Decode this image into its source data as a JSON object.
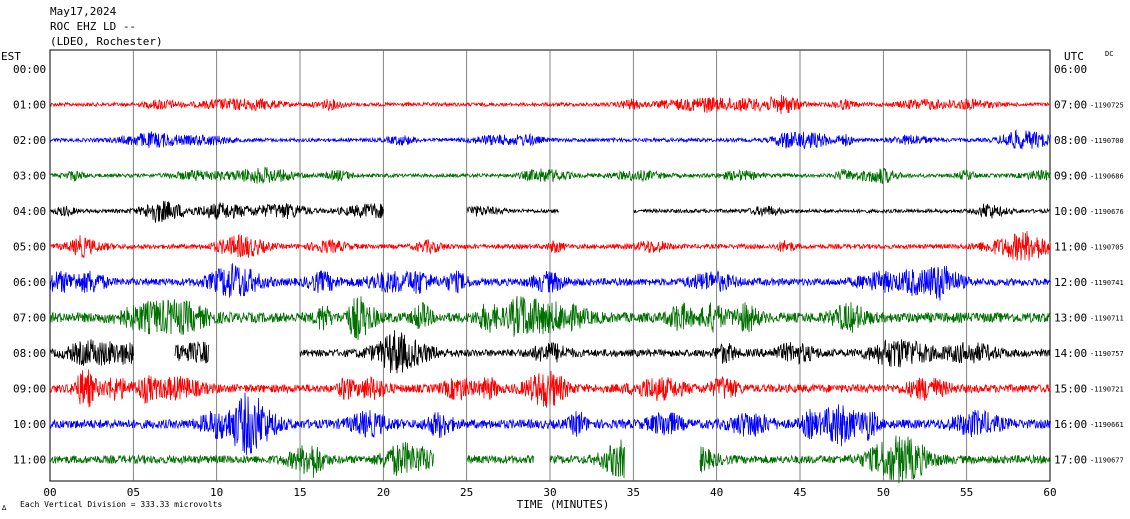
{
  "header": {
    "date": "May17,2024",
    "station": "ROC EHZ LD --",
    "network": "(LDEO, Rochester)"
  },
  "chart_data": {
    "type": "line",
    "left_axis_title": "EST",
    "right_axis_title": "UTC",
    "corner_label": "DC",
    "xlabel": "TIME (MINUTES)",
    "xlim": [
      0,
      60
    ],
    "x_ticks": [
      "00",
      "05",
      "10",
      "15",
      "20",
      "25",
      "30",
      "35",
      "40",
      "45",
      "50",
      "55",
      "60"
    ],
    "scale_note": "Each Vertical Division = 333.33 microvolts",
    "footer_mark": "∆",
    "colors": [
      "#ff0000",
      "#0000ff",
      "#007000",
      "#000000"
    ],
    "rows": [
      {
        "est": "00:00",
        "utc": "06:00",
        "dc": "",
        "color": "",
        "amplitude": 0
      },
      {
        "est": "01:00",
        "utc": "07:00",
        "dc": "1190725",
        "color": "#ff0000",
        "amplitude": 4,
        "gaps": []
      },
      {
        "est": "02:00",
        "utc": "08:00",
        "dc": "1190700",
        "color": "#0000ff",
        "amplitude": 4,
        "gaps": []
      },
      {
        "est": "03:00",
        "utc": "09:00",
        "dc": "1190686",
        "color": "#007000",
        "amplitude": 4,
        "gaps": []
      },
      {
        "est": "04:00",
        "utc": "10:00",
        "dc": "1190676",
        "color": "#000000",
        "amplitude": 4,
        "gaps": [
          [
            20,
            25
          ],
          [
            30.5,
            35
          ]
        ]
      },
      {
        "est": "05:00",
        "utc": "11:00",
        "dc": "1190705",
        "color": "#ff0000",
        "amplitude": 5,
        "gaps": []
      },
      {
        "est": "06:00",
        "utc": "12:00",
        "dc": "1190741",
        "color": "#0000ff",
        "amplitude": 8,
        "gaps": []
      },
      {
        "est": "07:00",
        "utc": "13:00",
        "dc": "1190711",
        "color": "#007000",
        "amplitude": 11,
        "gaps": []
      },
      {
        "est": "08:00",
        "utc": "14:00",
        "dc": "1190757",
        "color": "#000000",
        "amplitude": 8,
        "gaps": [
          [
            5,
            7.5
          ],
          [
            9.5,
            15
          ]
        ]
      },
      {
        "est": "09:00",
        "utc": "15:00",
        "dc": "1190721",
        "color": "#ff0000",
        "amplitude": 9,
        "gaps": []
      },
      {
        "est": "10:00",
        "utc": "16:00",
        "dc": "1190661",
        "color": "#0000ff",
        "amplitude": 10,
        "gaps": []
      },
      {
        "est": "11:00",
        "utc": "17:00",
        "dc": "1190677",
        "color": "#007000",
        "amplitude": 9,
        "gaps": [
          [
            23,
            25
          ],
          [
            29,
            30
          ],
          [
            34.5,
            39
          ]
        ]
      }
    ]
  }
}
